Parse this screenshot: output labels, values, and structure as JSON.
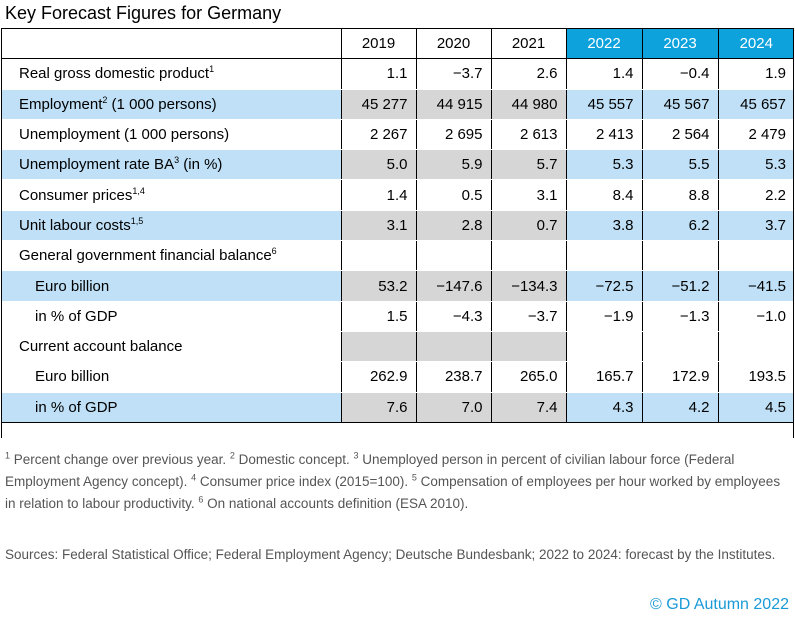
{
  "title": "Key Forecast Figures for Germany",
  "years": [
    "2019",
    "2020",
    "2021",
    "2022",
    "2023",
    "2024"
  ],
  "forecast_color": "#0ea2dc",
  "row_highlight_color": "#bfe0f6",
  "history_shade_color": "#d6d6d6",
  "rows": [
    {
      "label": "Real gross domestic product",
      "sup": "1",
      "values": [
        "1.1",
        "−3.7",
        "2.6",
        "1.4",
        "−0.4",
        "1.9"
      ]
    },
    {
      "label": "Employment",
      "sup": "2",
      "suffix": " (1 000 persons)",
      "values": [
        "45 277",
        "44 915",
        "44 980",
        "45 557",
        "45 567",
        "45 657"
      ]
    },
    {
      "label": "Unemployment (1 000 persons)",
      "values": [
        "2 267",
        "2 695",
        "2 613",
        "2 413",
        "2 564",
        "2 479"
      ]
    },
    {
      "label": "Unemployment rate BA",
      "sup": "3",
      "suffix": " (in %)",
      "values": [
        "5.0",
        "5.9",
        "5.7",
        "5.3",
        "5.5",
        "5.3"
      ]
    },
    {
      "label": "Consumer prices",
      "sup": "1,4",
      "values": [
        "1.4",
        "0.5",
        "3.1",
        "8.4",
        "8.8",
        "2.2"
      ]
    },
    {
      "label": "Unit labour costs",
      "sup": "1,5",
      "values": [
        "3.1",
        "2.8",
        "0.7",
        "3.8",
        "6.2",
        "3.7"
      ]
    },
    {
      "label": "General government financial balance",
      "sup": "6",
      "values": [
        "",
        "",
        "",
        "",
        "",
        ""
      ]
    },
    {
      "label": "Euro billion",
      "values": [
        "53.2",
        "−147.6",
        "−134.3",
        "−72.5",
        "−51.2",
        "−41.5"
      ]
    },
    {
      "label": "in % of GDP",
      "values": [
        "1.5",
        "−4.3",
        "−3.7",
        "−1.9",
        "−1.3",
        "−1.0"
      ]
    },
    {
      "label": "Current account balance",
      "values": [
        "",
        "",
        "",
        "",
        "",
        ""
      ]
    },
    {
      "label": "Euro billion",
      "values": [
        "262.9",
        "238.7",
        "265.0",
        "165.7",
        "172.9",
        "193.5"
      ]
    },
    {
      "label": "in % of GDP",
      "values": [
        "7.6",
        "7.0",
        "7.4",
        "4.3",
        "4.2",
        "4.5"
      ]
    }
  ],
  "footnotes": [
    {
      "sup": "1",
      "text": " Percent change over previous year. "
    },
    {
      "sup": "2",
      "text": " Domestic concept. "
    },
    {
      "sup": "3",
      "text": " Unemployed person in percent of civilian labour force (Federal Employment Agency concept). "
    },
    {
      "sup": "4",
      "text": " Consumer price index (2015=100). "
    },
    {
      "sup": "5",
      "text": " Compensation of employees per hour worked by employees in relation to labour productivity. "
    },
    {
      "sup": "6",
      "text": " On national accounts definition (ESA 2010)."
    }
  ],
  "sources": "Sources: Federal Statistical Office; Federal Employment Agency; Deutsche Bundesbank; 2022 to 2024: forecast by the Institutes.",
  "copyright": "© GD Autumn 2022"
}
